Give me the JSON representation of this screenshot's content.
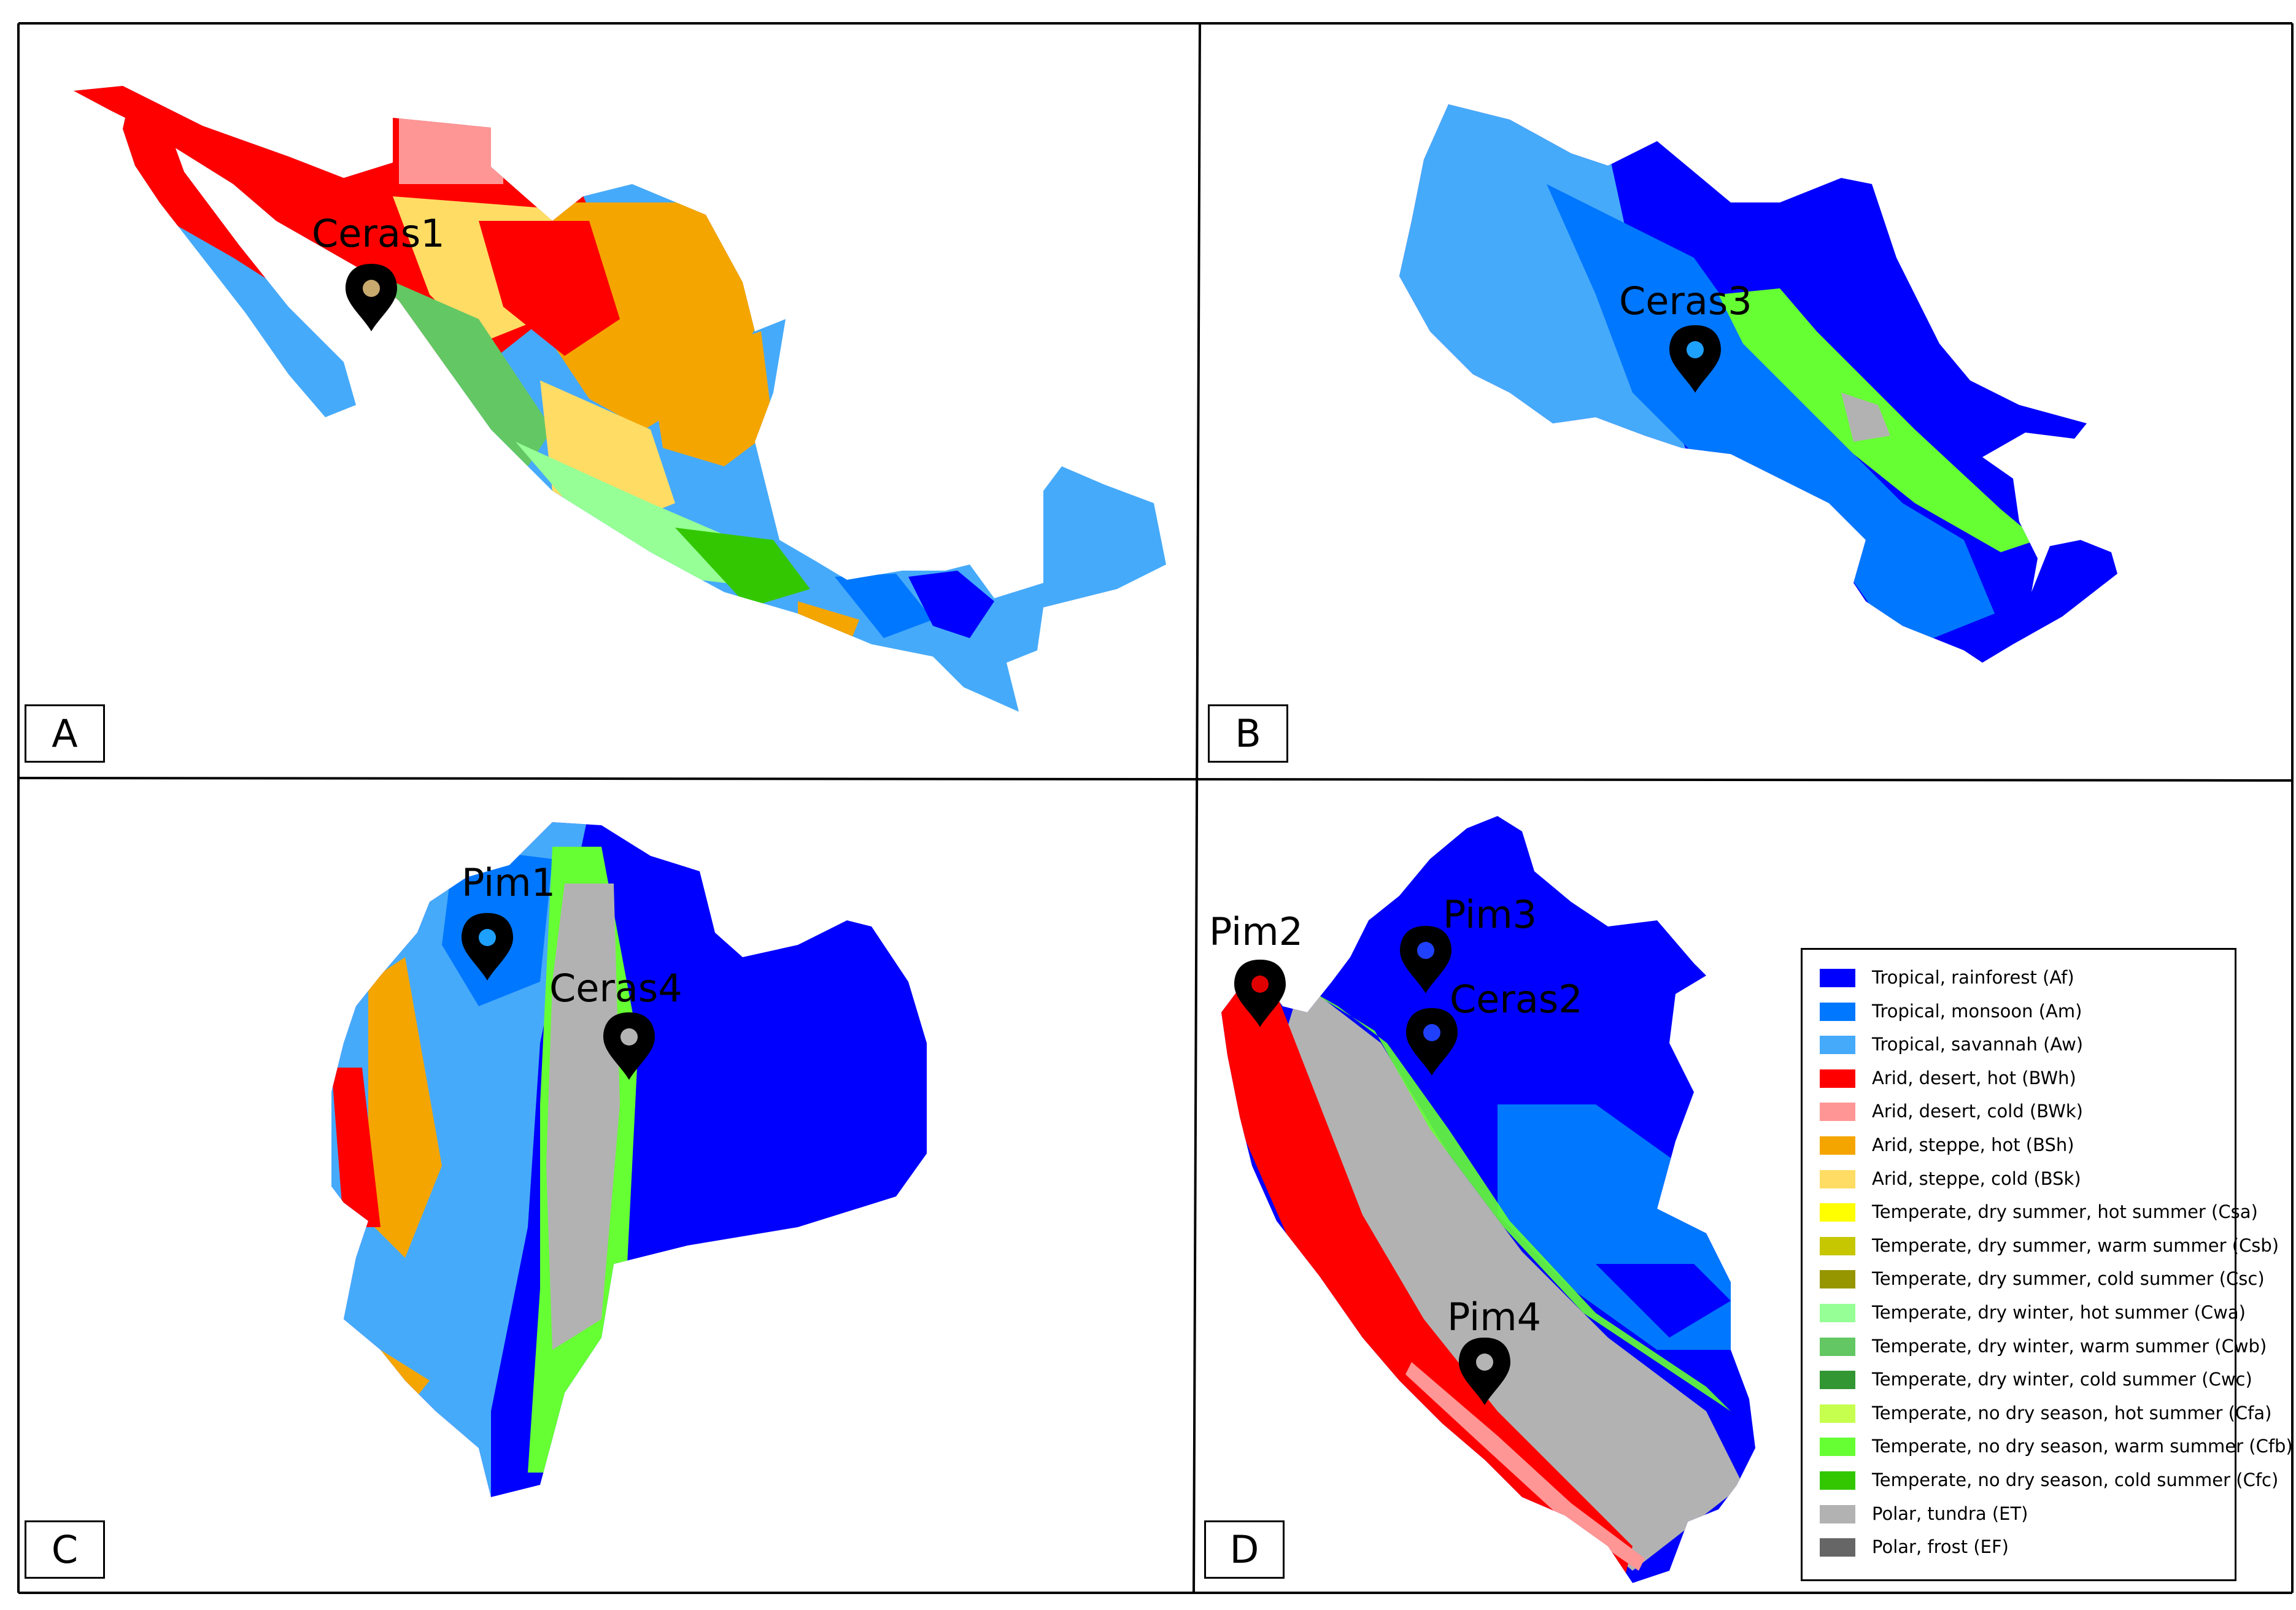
{
  "panels": [
    {
      "id": "A",
      "label": "A",
      "region": "Mexico",
      "sites": [
        {
          "name": "Ceras1",
          "dot": "#c8a96e"
        }
      ]
    },
    {
      "id": "B",
      "label": "B",
      "region": "Costa Rica",
      "sites": [
        {
          "name": "Ceras3",
          "dot": "#1ea0ff"
        }
      ]
    },
    {
      "id": "C",
      "label": "C",
      "region": "Ecuador",
      "sites": [
        {
          "name": "Pim1",
          "dot": "#1ea0ff"
        },
        {
          "name": "Ceras4",
          "dot": "#b4b4b4"
        }
      ]
    },
    {
      "id": "D",
      "label": "D",
      "region": "Peru",
      "sites": [
        {
          "name": "Pim2",
          "dot": "#e00000"
        },
        {
          "name": "Pim3",
          "dot": "#2040ff"
        },
        {
          "name": "Ceras2",
          "dot": "#2040ff"
        },
        {
          "name": "Pim4",
          "dot": "#b4b4b4"
        }
      ]
    }
  ],
  "legend": [
    {
      "label": "Tropical, rainforest (Af)",
      "color": "#0000fe"
    },
    {
      "label": "Tropical, monsoon (Am)",
      "color": "#0077ff"
    },
    {
      "label": "Tropical, savannah (Aw)",
      "color": "#46aafa"
    },
    {
      "label": "Arid, desert, hot (BWh)",
      "color": "#fe0000"
    },
    {
      "label": "Arid, desert, cold (BWk)",
      "color": "#fe9695"
    },
    {
      "label": "Arid, steppe, hot (BSh)",
      "color": "#f5a500"
    },
    {
      "label": "Arid, steppe, cold (BSk)",
      "color": "#ffdc64"
    },
    {
      "label": "Temperate, dry summer, hot summer (Csa)",
      "color": "#ffff00"
    },
    {
      "label": "Temperate, dry summer, warm summer (Csb)",
      "color": "#c6c700"
    },
    {
      "label": "Temperate, dry summer, cold summer (Csc)",
      "color": "#969600"
    },
    {
      "label": "Temperate, dry winter, hot summer (Cwa)",
      "color": "#96ff96"
    },
    {
      "label": "Temperate, dry winter, warm summer (Cwb)",
      "color": "#63c764"
    },
    {
      "label": "Temperate, dry winter, cold summer (Cwc)",
      "color": "#329633"
    },
    {
      "label": "Temperate, no dry season, hot summer (Cfa)",
      "color": "#c6ff4e"
    },
    {
      "label": "Temperate, no dry season, warm summer (Cfb)",
      "color": "#66ff33"
    },
    {
      "label": "Temperate, no dry season, cold summer (Cfc)",
      "color": "#33c701"
    },
    {
      "label": "Polar, tundra (ET)",
      "color": "#b2b2b2"
    },
    {
      "label": "Polar, frost (EF)",
      "color": "#666666"
    }
  ]
}
